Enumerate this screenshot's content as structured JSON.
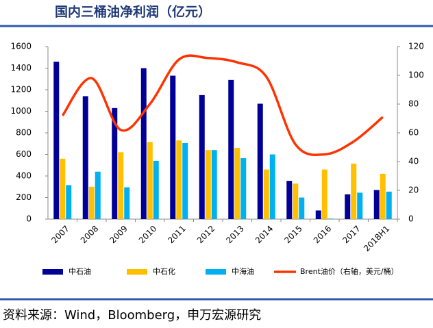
{
  "chart_data": {
    "type": "bar",
    "title": "国内三桶油净利润（亿元）",
    "source": "资料来源：Wind，Bloomberg，申万宏源研究",
    "categories": [
      "2007",
      "2008",
      "2009",
      "2010",
      "2011",
      "2012",
      "2013",
      "2014",
      "2015",
      "2016",
      "2017",
      "2018H1"
    ],
    "series": [
      {
        "name": "中石油",
        "color": "#000099",
        "values": [
          1460,
          1140,
          1030,
          1400,
          1330,
          1150,
          1290,
          1070,
          355,
          80,
          230,
          270
        ]
      },
      {
        "name": "中石化",
        "color": "#FFC000",
        "values": [
          560,
          300,
          620,
          715,
          730,
          640,
          660,
          460,
          330,
          460,
          515,
          420
        ]
      },
      {
        "name": "中海油",
        "color": "#00B0F0",
        "values": [
          315,
          440,
          295,
          540,
          705,
          640,
          565,
          600,
          200,
          5,
          245,
          255
        ]
      },
      {
        "name": "Brent油价（右轴，美元/桶）",
        "color": "#FF3300",
        "type": "line",
        "axis": "y2",
        "values": [
          72,
          98,
          62,
          80,
          111,
          112,
          109,
          99,
          52,
          45,
          54,
          71
        ]
      }
    ],
    "ylim": [
      0,
      1600
    ],
    "yticks": [
      0,
      200,
      400,
      600,
      800,
      1000,
      1200,
      1400,
      1600
    ],
    "y2lim": [
      0,
      120
    ],
    "y2ticks": [
      0,
      20,
      40,
      60,
      80,
      100,
      120
    ]
  }
}
